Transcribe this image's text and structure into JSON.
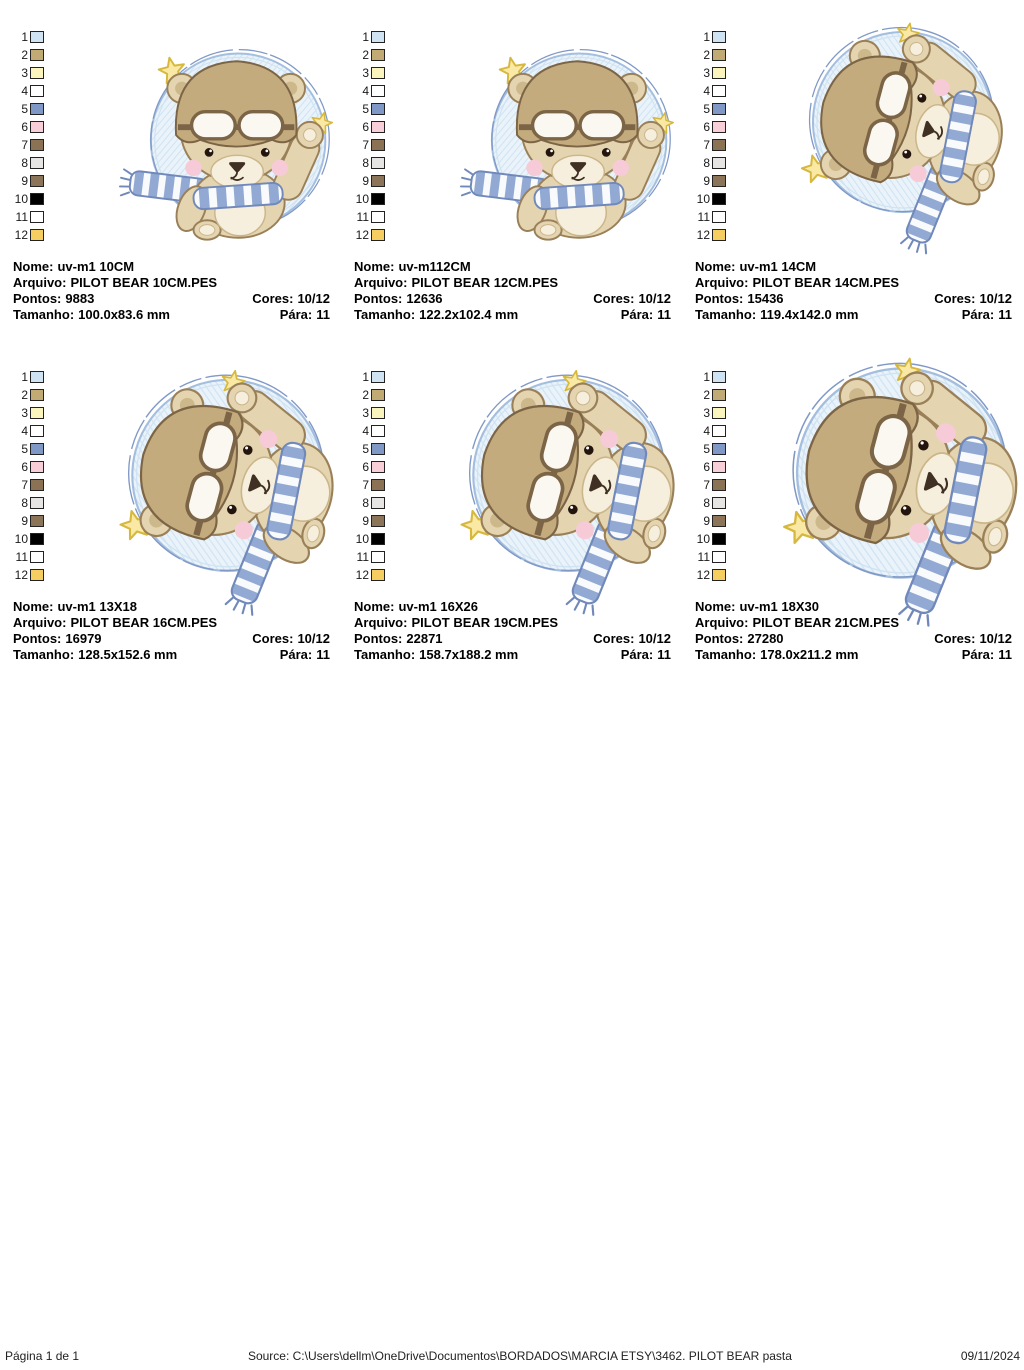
{
  "palette": {
    "items": [
      {
        "n": "1",
        "color": "#cfe3f2"
      },
      {
        "n": "2",
        "color": "#c2aa75"
      },
      {
        "n": "3",
        "color": "#fbf4bd"
      },
      {
        "n": "4",
        "color": "#ffffff"
      },
      {
        "n": "5",
        "color": "#8098c6"
      },
      {
        "n": "6",
        "color": "#f8cfd9"
      },
      {
        "n": "7",
        "color": "#8b7254"
      },
      {
        "n": "8",
        "color": "#e7e5e3"
      },
      {
        "n": "9",
        "color": "#8b7458"
      },
      {
        "n": "10",
        "color": "#000000"
      },
      {
        "n": "11",
        "color": "#ffffff"
      },
      {
        "n": "12",
        "color": "#f5cd60"
      }
    ]
  },
  "labels": {
    "nome": "Nome:",
    "arquivo": "Arquivo:",
    "pontos": "Pontos:",
    "cores": "Cores:",
    "tamanho": "Tamanho:",
    "para": "Pára:"
  },
  "designs": [
    {
      "nome": "uv-m1 10CM",
      "arquivo": "PILOT BEAR 10CM.PES",
      "pontos": "9883",
      "cores": "10/12",
      "tamanho": "100.0x83.6 mm",
      "para": "11"
    },
    {
      "nome": "uv-m112CM",
      "arquivo": "PILOT BEAR 12CM.PES",
      "pontos": "12636",
      "cores": "10/12",
      "tamanho": "122.2x102.4 mm",
      "para": "11"
    },
    {
      "nome": "uv-m1 14CM",
      "arquivo": "PILOT BEAR 14CM.PES",
      "pontos": "15436",
      "cores": "10/12",
      "tamanho": "119.4x142.0 mm",
      "para": "11"
    },
    {
      "nome": "uv-m1 13X18",
      "arquivo": "PILOT BEAR 16CM.PES",
      "pontos": "16979",
      "cores": "10/12",
      "tamanho": "128.5x152.6 mm",
      "para": "11"
    },
    {
      "nome": "uv-m1 16X26",
      "arquivo": "PILOT BEAR 19CM.PES",
      "pontos": "22871",
      "cores": "10/12",
      "tamanho": "158.7x188.2 mm",
      "para": "11"
    },
    {
      "nome": "uv-m1 18X30",
      "arquivo": "PILOT BEAR 21CM.PES",
      "pontos": "27280",
      "cores": "10/12",
      "tamanho": "178.0x211.2 mm",
      "para": "11"
    }
  ],
  "footer": {
    "page": "Página 1 de 1",
    "source": "Source: C:\\Users\\dellm\\OneDrive\\Documentos\\BORDADOS\\MARCIA ETSY\\3462. PILOT BEAR pasta",
    "date": "09/11/2024"
  },
  "art": {
    "colors": {
      "circle_fill": "#ebf3fa",
      "circle_hatch": "#cfe3f2",
      "circle_stroke": "#a3bedf",
      "circle_stroke2": "#8099c6",
      "fur": "#e4d4b0",
      "fur_shade": "#cdb88c",
      "fur_stroke": "#9a8058",
      "cream": "#f6efdd",
      "cream_stroke": "#cbb68a",
      "cap": "#c4ab7d",
      "cap_stroke": "#7c6546",
      "lens": "#faf8f0",
      "scarf_blue": "#92a9d4",
      "scarf_white": "#f8fafc",
      "scarf_stroke": "#7089ba",
      "star": "#f9e9a4",
      "star_stroke": "#d7b83e",
      "cheek": "#f6cbd7",
      "eye": "#23150e",
      "nose": "#402f23"
    }
  }
}
